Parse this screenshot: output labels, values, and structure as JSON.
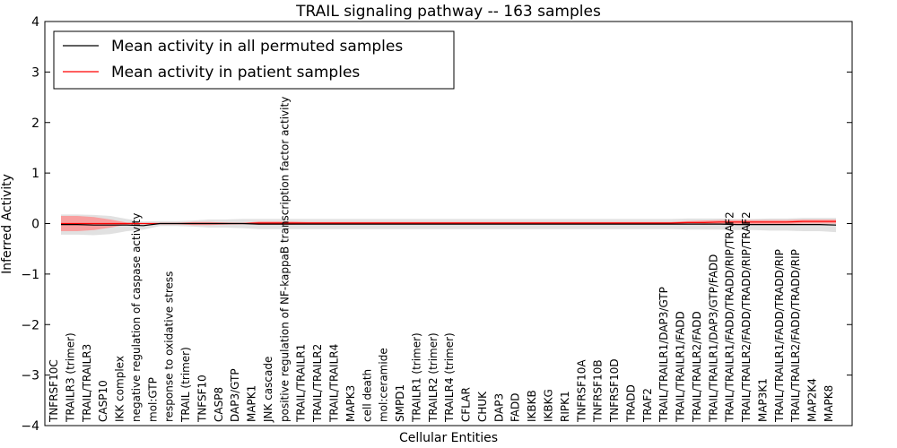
{
  "chart_data": {
    "type": "line",
    "title": "TRAIL signaling pathway -- 163 samples",
    "xlabel": "Cellular Entities",
    "ylabel": "Inferred Activity",
    "ylim": [
      -4,
      4
    ],
    "yticks": [
      "4",
      "3",
      "2",
      "1",
      "0",
      "−1",
      "−2",
      "−3",
      "−4"
    ],
    "ytick_values": [
      4,
      3,
      2,
      1,
      0,
      -1,
      -2,
      -3,
      -4
    ],
    "legend_position": "top-left",
    "categories": [
      "TNFRSF10C",
      "TRAILR3 (trimer)",
      "TRAIL/TRAILR3",
      "CASP10",
      "IKK complex",
      "negative regulation of caspase activity",
      "mol:GTP",
      "response to oxidative stress",
      "TRAIL (trimer)",
      "TNFSF10",
      "CASP8",
      "DAP3/GTP",
      "MAPK1",
      "JNK cascade",
      "positive regulation of NF-kappaB transcription factor activity",
      "TRAIL/TRAILR1",
      "TRAIL/TRAILR2",
      "TRAIL/TRAILR4",
      "MAPK3",
      "cell death",
      "mol:ceramide",
      "SMPD1",
      "TRAILR1 (trimer)",
      "TRAILR2 (trimer)",
      "TRAILR4 (trimer)",
      "CFLAR",
      "CHUK",
      "DAP3",
      "FADD",
      "IKBKB",
      "IKBKG",
      "RIPK1",
      "TNFRSF10A",
      "TNFRSF10B",
      "TNFRSF10D",
      "TRADD",
      "TRAF2",
      "TRAIL/TRAILR1/DAP3/GTP",
      "TRAIL/TRAILR1/FADD",
      "TRAIL/TRAILR2/FADD",
      "TRAIL/TRAILR1/DAP3/GTP/FADD",
      "TRAIL/TRAILR1/FADD/TRADD/RIP/TRAF2",
      "TRAIL/TRAILR2/FADD/TRADD/RIP/TRAF2",
      "MAP3K1",
      "TRAIL/TRAILR1/FADD/TRADD/RIP",
      "TRAIL/TRAILR2/FADD/TRADD/RIP",
      "MAP2K4",
      "MAPK8"
    ],
    "series": [
      {
        "name": "Mean activity in all permuted samples",
        "color": "#000000",
        "band_color": "#c8c8c8",
        "values": [
          -0.02,
          -0.02,
          -0.03,
          -0.03,
          -0.03,
          -0.04,
          0.0,
          0.0,
          0.0,
          0.0,
          0.0,
          0.0,
          -0.01,
          -0.01,
          -0.01,
          -0.01,
          -0.01,
          -0.01,
          -0.01,
          -0.01,
          -0.01,
          -0.01,
          -0.01,
          -0.01,
          -0.01,
          -0.01,
          -0.01,
          -0.01,
          -0.01,
          -0.01,
          -0.01,
          -0.01,
          -0.01,
          -0.01,
          -0.01,
          -0.01,
          -0.01,
          -0.01,
          -0.01,
          -0.01,
          -0.01,
          -0.02,
          -0.02,
          -0.02,
          -0.02,
          -0.02,
          -0.02,
          -0.03
        ],
        "spread": [
          0.2,
          0.2,
          0.2,
          0.18,
          0.12,
          0.08,
          0.05,
          0.05,
          0.06,
          0.08,
          0.08,
          0.09,
          0.1,
          0.1,
          0.1,
          0.1,
          0.1,
          0.1,
          0.1,
          0.1,
          0.1,
          0.1,
          0.1,
          0.1,
          0.1,
          0.1,
          0.1,
          0.1,
          0.1,
          0.1,
          0.1,
          0.1,
          0.1,
          0.1,
          0.1,
          0.1,
          0.1,
          0.1,
          0.11,
          0.11,
          0.11,
          0.11,
          0.11,
          0.12,
          0.12,
          0.13,
          0.13,
          0.14
        ]
      },
      {
        "name": "Mean activity in patient samples",
        "color": "#ff0000",
        "band_color": "#ff8888",
        "values": [
          0.0,
          0.0,
          0.0,
          0.0,
          0.0,
          0.0,
          0.0,
          0.0,
          0.0,
          0.0,
          0.0,
          0.0,
          0.01,
          0.01,
          0.01,
          0.01,
          0.01,
          0.01,
          0.01,
          0.01,
          0.01,
          0.01,
          0.01,
          0.01,
          0.01,
          0.01,
          0.01,
          0.01,
          0.01,
          0.01,
          0.01,
          0.01,
          0.01,
          0.01,
          0.01,
          0.01,
          0.01,
          0.01,
          0.02,
          0.02,
          0.03,
          0.03,
          0.03,
          0.03,
          0.03,
          0.04,
          0.04,
          0.04
        ],
        "spread": [
          0.15,
          0.15,
          0.13,
          0.08,
          0.02,
          0.01,
          0.01,
          0.01,
          0.03,
          0.03,
          0.02,
          0.01,
          0.03,
          0.03,
          0.03,
          0.02,
          0.02,
          0.02,
          0.02,
          0.02,
          0.02,
          0.02,
          0.02,
          0.02,
          0.02,
          0.02,
          0.02,
          0.02,
          0.02,
          0.02,
          0.02,
          0.02,
          0.02,
          0.02,
          0.02,
          0.02,
          0.02,
          0.02,
          0.03,
          0.04,
          0.04,
          0.04,
          0.04,
          0.04,
          0.04,
          0.04,
          0.04,
          0.04
        ]
      }
    ]
  }
}
